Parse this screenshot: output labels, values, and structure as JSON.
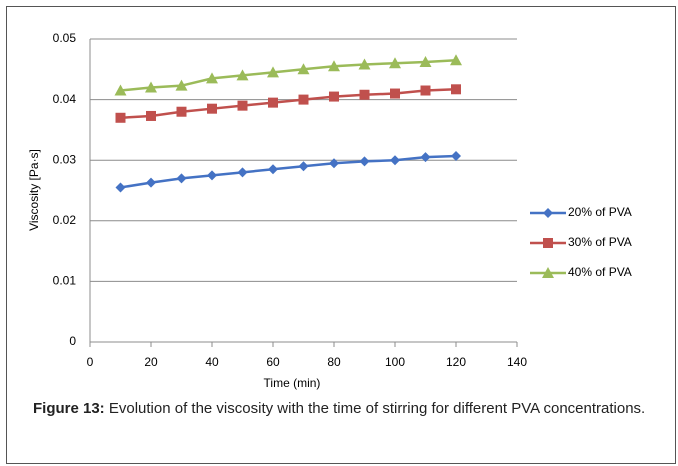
{
  "chart_data": {
    "type": "line",
    "x_label": "Time (min)",
    "y_label": "Viscosity [Pa·s]",
    "x": [
      10,
      20,
      30,
      40,
      50,
      60,
      70,
      80,
      90,
      100,
      110,
      120
    ],
    "series": [
      {
        "name": "20% of PVA",
        "color": "#4472c4",
        "marker": "diamond",
        "values": [
          0.0255,
          0.0263,
          0.027,
          0.0275,
          0.028,
          0.0285,
          0.029,
          0.0295,
          0.0298,
          0.03,
          0.0305,
          0.0307
        ]
      },
      {
        "name": "30% of PVA",
        "color": "#c0504d",
        "marker": "square",
        "values": [
          0.037,
          0.0373,
          0.038,
          0.0385,
          0.039,
          0.0395,
          0.04,
          0.0405,
          0.0408,
          0.041,
          0.0415,
          0.0417
        ]
      },
      {
        "name": "40% of PVA",
        "color": "#9bbb59",
        "marker": "triangle",
        "values": [
          0.0415,
          0.042,
          0.0423,
          0.0435,
          0.044,
          0.0445,
          0.045,
          0.0455,
          0.0458,
          0.046,
          0.0462,
          0.0465
        ]
      }
    ],
    "xlim": [
      0,
      140
    ],
    "xticks": [
      0,
      20,
      40,
      60,
      80,
      100,
      120,
      140
    ],
    "ylim": [
      0,
      0.05
    ],
    "yticks": [
      0,
      0.01,
      0.02,
      0.03,
      0.04,
      0.05
    ],
    "grid": true,
    "legend": "right"
  },
  "caption": {
    "label": "Figure 13:",
    "text": "Evolution of the viscosity with the time of stirring for different PVA concentrations."
  }
}
